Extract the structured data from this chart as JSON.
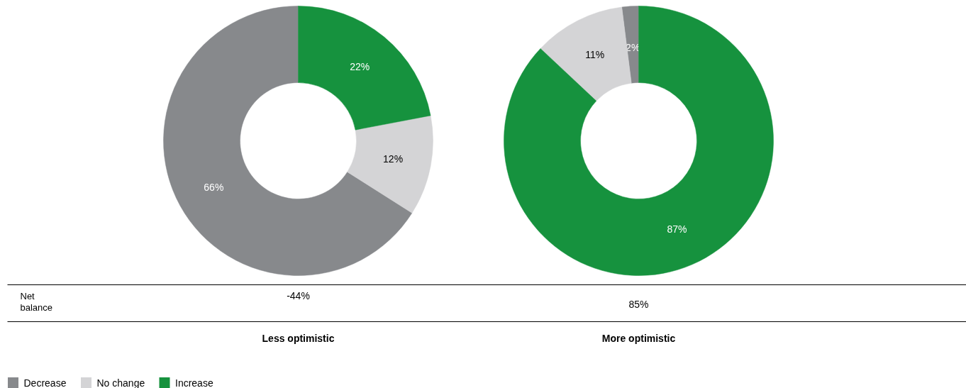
{
  "chart_data": [
    {
      "type": "donut",
      "title": "Less optimistic",
      "categories": [
        "Decrease",
        "No change",
        "Increase"
      ],
      "values": [
        66,
        12,
        22
      ],
      "colors": [
        "#87898c",
        "#d4d4d6",
        "#16923e"
      ],
      "value_labels": [
        "66%",
        "12%",
        "22%"
      ],
      "annotations": [
        "Net balance",
        "-44%"
      ],
      "legend": "bottom left"
    },
    {
      "type": "donut",
      "title": "More optimistic",
      "categories": [
        null,
        null,
        null
      ],
      "values": [
        2,
        11,
        87
      ],
      "colors": [
        "#87898c",
        "#d4d4d6",
        "#16923e"
      ],
      "value_labels": [
        "2%",
        "11%",
        "87%"
      ],
      "annotations": [
        "85%"
      ]
    }
  ]
}
